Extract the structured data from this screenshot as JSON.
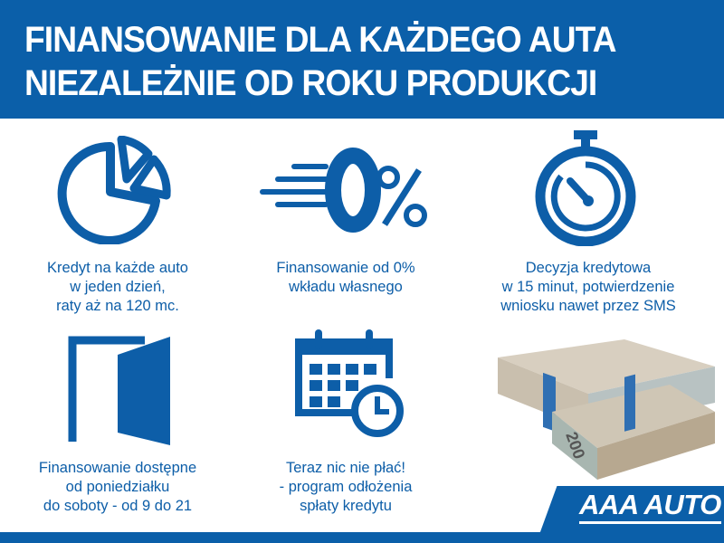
{
  "header": {
    "line1": "FINANSOWANIE DLA KAŻDEGO AUTA",
    "line2": "NIEZALEŻNIE OD ROKU PRODUKCJI"
  },
  "features": [
    {
      "icon": "pie-chart-icon",
      "lines": [
        "Kredyt na każde auto",
        "w jeden dzień,",
        "raty aż na 120 mc."
      ]
    },
    {
      "icon": "zero-percent-icon",
      "lines": [
        "Finansowanie od 0%",
        "wkładu własnego"
      ]
    },
    {
      "icon": "stopwatch-icon",
      "lines": [
        "Decyzja kredytowa",
        "w 15 minut, potwierdzenie",
        "wniosku nawet przez SMS"
      ]
    },
    {
      "icon": "open-door-icon",
      "lines": [
        "Finansowanie dostępne",
        "od poniedziałku",
        "do soboty - od 9 do 21"
      ]
    },
    {
      "icon": "calendar-clock-icon",
      "lines": [
        "Teraz nic nie płać!",
        "- program odłożenia",
        "spłaty kredytu"
      ]
    }
  ],
  "logo": {
    "text": "AAA AUTO"
  },
  "colors": {
    "brand_blue": "#0b5fa9",
    "text_blue": "#0d5ea8"
  }
}
